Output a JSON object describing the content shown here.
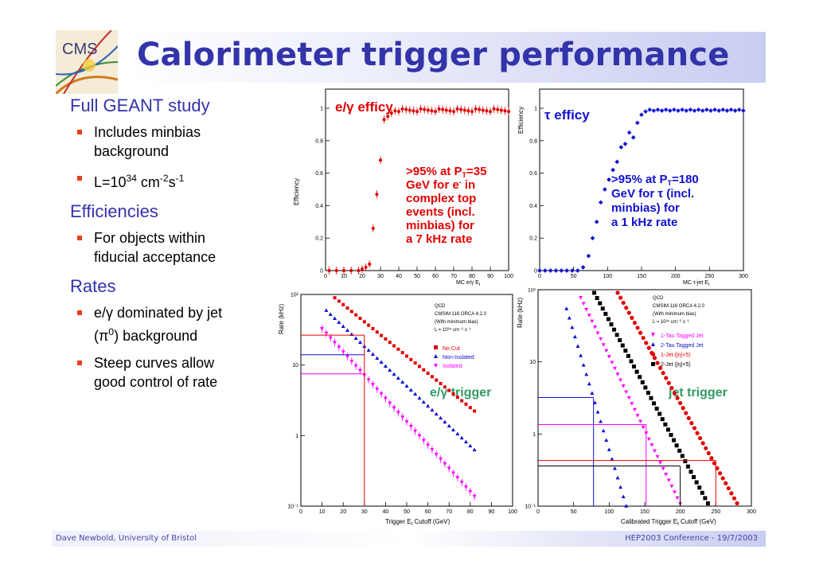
{
  "title": "Calorimeter trigger performance",
  "logo_text": "CMS",
  "sections": [
    {
      "heading": "Full GEANT study",
      "bullets": [
        {
          "text": "Includes minbias background"
        },
        {
          "pre": "L=10",
          "sup1": "34",
          "mid": " cm",
          "sup2": "-2",
          "mid2": "s",
          "sup3": "-1"
        }
      ]
    },
    {
      "heading": "Efficiencies",
      "bullets": [
        {
          "text": "For objects within fiducial acceptance"
        }
      ]
    },
    {
      "heading": "Rates",
      "bullets": [
        {
          "pre": "e/γ dominated by jet (π",
          "sup1": "0",
          "mid": ") background"
        },
        {
          "text": "Steep curves allow good control of rate"
        }
      ]
    }
  ],
  "plots": {
    "eg_eff": {
      "ylabel": "Efficiency",
      "xlabel": "MC e/γ E",
      "xlabel_sub": "t",
      "legend": "e/γ efficy",
      "note_lines": [
        ">95% at P",
        "T",
        "=35",
        "GeV for e",
        "-",
        " in",
        "complex top",
        "events (incl.",
        "minbias) for",
        "a 7 kHz rate"
      ],
      "yticks": [
        "0",
        "0.2",
        "0.4",
        "0.6",
        "0.8",
        "1"
      ],
      "xticks": [
        "0",
        "10",
        "20",
        "30",
        "40",
        "50",
        "60",
        "70",
        "80",
        "90",
        "100"
      ]
    },
    "tau_eff": {
      "ylabel": "Efficiency",
      "xlabel": "MC τ-jet E",
      "xlabel_sub": "t",
      "legend": "τ efficy",
      "note_lines": [
        ">95% at P",
        "T",
        "=180",
        "GeV for τ (incl.",
        "minbias) for",
        "a 1 kHz rate"
      ],
      "yticks": [
        "0",
        "0.2",
        "0.4",
        "0.6",
        "0.8",
        "1"
      ],
      "xticks": [
        "0",
        "50",
        "100",
        "150",
        "200",
        "250",
        "300"
      ]
    },
    "eg_rate": {
      "ylabel": "Rate (kHz)",
      "xlabel": "Trigger E",
      "xlabel_sub": "t",
      "xlabel_end": " Cutoff (GeV)",
      "info": [
        "QCD",
        "CMSIM 116 ORCA 4.2.0",
        "(With minimum bias)",
        "L = 10³⁴ cm⁻² s⁻¹"
      ],
      "legend": [
        "No Cut",
        "Non-Isolated",
        "Isolated"
      ],
      "label": "e/γ trigger",
      "yticks": [
        "10⁻¹",
        "1",
        "10",
        "10²"
      ],
      "xticks": [
        "0",
        "10",
        "20",
        "30",
        "40",
        "50",
        "60",
        "70",
        "80",
        "90",
        "100"
      ]
    },
    "jet_rate": {
      "ylabel": "Rate (kHz)",
      "xlabel": "Calibrated Trigger E",
      "xlabel_sub": "t",
      "xlabel_end": " Cutoff (GeV)",
      "info": [
        "QCD",
        "CMSIM 116 ORCA 4.2.0",
        "(With minimum bias)",
        "L = 10³⁴ cm⁻² s⁻¹"
      ],
      "legend": [
        "1-Tau Tagged Jet",
        "2-Tau Tagged Jet",
        "1-Jet (|η|<5)",
        "2-Jet (|η|<5)"
      ],
      "label": "jet trigger",
      "yticks": [
        "10⁻¹",
        "1",
        "10",
        "10²"
      ],
      "xticks": [
        "0",
        "50",
        "100",
        "150",
        "200",
        "250",
        "300"
      ]
    }
  },
  "colors": {
    "title": "#3333aa",
    "bullet": "#e8401a",
    "red": "#e00000",
    "blue": "#1010d0",
    "magenta": "#ff00ff",
    "green": "#339966"
  },
  "footer": {
    "left": "Dave Newbold, University of Bristol",
    "right": "HEP2003 Conference - 19/7/2003"
  }
}
